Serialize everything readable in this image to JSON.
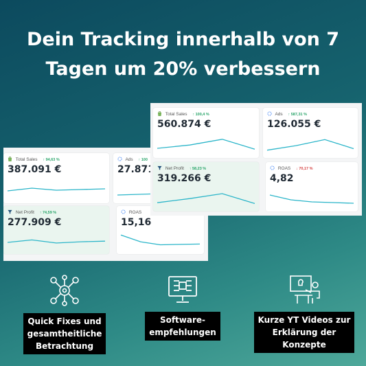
{
  "headline": {
    "line1": "Dein Tracking innerhalb von 7",
    "line2": "Tagen um 20% verbessern"
  },
  "back_dashboard": {
    "cards": [
      {
        "label": "Total Sales",
        "change": "↑ 94,63 %",
        "direction": "up",
        "value": "387.091 €",
        "trend": [
          0.5,
          0.3,
          0.45,
          0.4,
          0.35
        ]
      },
      {
        "label": "Ads",
        "change": "↑ 100",
        "direction": "up",
        "value": "27.871 €",
        "trend": [
          0.8,
          0.7,
          0.55
        ]
      },
      {
        "label": "Net Profit",
        "change": "↑ 74,59 %",
        "direction": "up",
        "value": "277.909 €",
        "trend": [
          0.5,
          0.3,
          0.55,
          0.45,
          0.4
        ]
      },
      {
        "label": "ROAS",
        "change": "",
        "direction": "up",
        "value": "15,16",
        "trend": [
          0.1,
          0.55,
          0.75,
          0.72,
          0.7
        ]
      }
    ]
  },
  "front_dashboard": {
    "cards": [
      {
        "label": "Total Sales",
        "change": "↑ 100,4 %",
        "direction": "up",
        "value": "560.874 €",
        "trend": [
          0.75,
          0.55,
          0.2,
          0.8
        ]
      },
      {
        "label": "Ads",
        "change": "↑ 587,31 %",
        "direction": "up",
        "value": "126.055 €",
        "trend": [
          0.85,
          0.55,
          0.15,
          0.75
        ]
      },
      {
        "label": "Net Profit",
        "change": "↑ 58,23 %",
        "direction": "up",
        "value": "319.266 €",
        "trend": [
          0.8,
          0.55,
          0.25,
          0.85
        ]
      },
      {
        "label": "ROAS",
        "change": "↓ 70,17 %",
        "direction": "down",
        "value": "4,82",
        "trend": [
          0.2,
          0.55,
          0.7,
          0.75,
          0.8
        ]
      }
    ]
  },
  "features": [
    {
      "icon": "gears-network-icon",
      "lines": [
        "Quick Fixes und",
        "gesamtheitliche",
        "Betrachtung"
      ]
    },
    {
      "icon": "software-monitor-icon",
      "lines": [
        "Software-",
        "empfehlungen"
      ]
    },
    {
      "icon": "teacher-presentation-icon",
      "lines": [
        "Kurze YT Videos zur",
        "Erklärung der",
        "Konzepte"
      ]
    }
  ],
  "colors": {
    "up": "#2aa56a",
    "down": "#d64545",
    "sparkline": "#2bb5c9"
  }
}
